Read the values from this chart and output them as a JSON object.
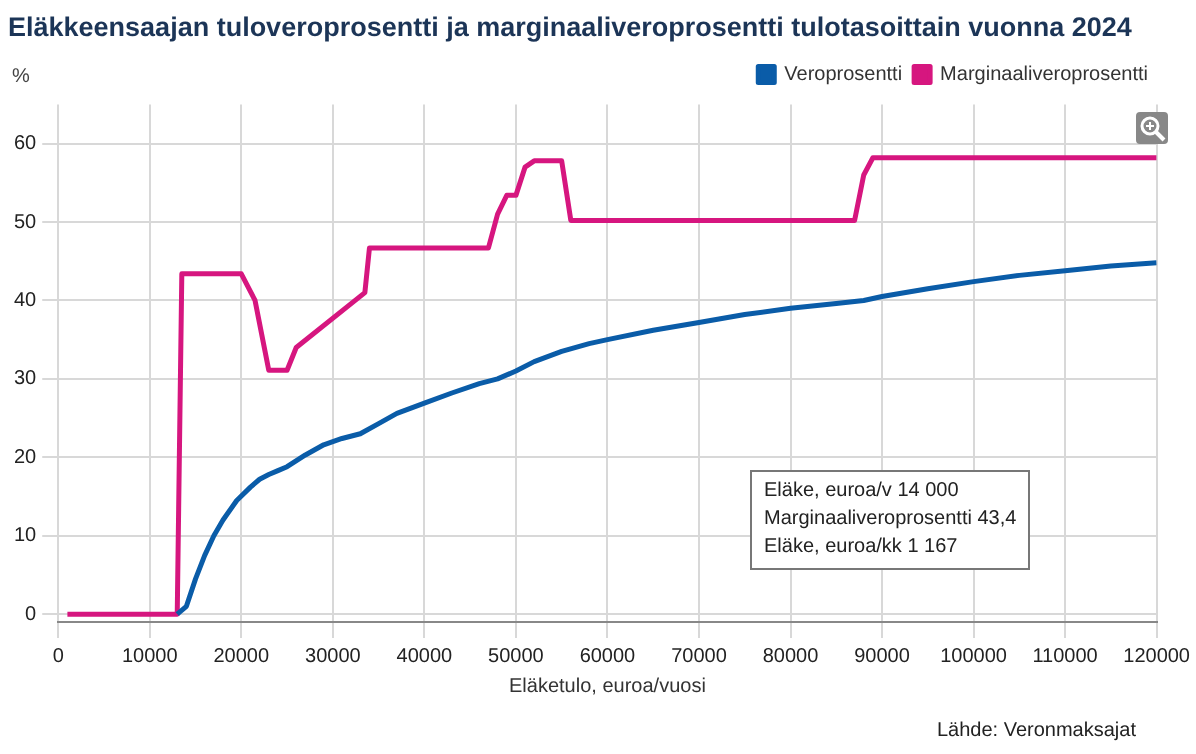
{
  "chart_data": {
    "type": "line",
    "title": "Eläkkeensaajan tuloveroprosentti ja marginaaliveroprosentti tulotasoittain vuonna 2024",
    "xlabel": "Eläketulo, euroa/vuosi",
    "ylabel": "%",
    "xlim": [
      0,
      120000
    ],
    "xticks": [
      0,
      10000,
      20000,
      30000,
      40000,
      50000,
      60000,
      70000,
      80000,
      90000,
      100000,
      110000,
      120000
    ],
    "ylim": [
      -1,
      65
    ],
    "yticks": [
      0,
      10,
      20,
      30,
      40,
      50,
      60
    ],
    "grid": true,
    "legend": "top right",
    "marker": "none",
    "line_style": "solid",
    "series": [
      {
        "name": "Veroprosentti",
        "color": "#0a5ca8",
        "x": [
          13000,
          14000,
          15000,
          16000,
          17000,
          18000,
          19500,
          21000,
          22000,
          23000,
          24000,
          25000,
          27000,
          29000,
          31000,
          33000,
          35000,
          37000,
          40000,
          43000,
          46000,
          48000,
          50000,
          52000,
          55000,
          58000,
          60000,
          65000,
          70000,
          75000,
          80000,
          85000,
          88000,
          90000,
          95000,
          100000,
          105000,
          110000,
          115000,
          120000
        ],
        "values": [
          0,
          1,
          4.5,
          7.5,
          10,
          12,
          14.5,
          16.2,
          17.2,
          17.8,
          18.3,
          18.8,
          20.3,
          21.6,
          22.4,
          23,
          24.3,
          25.6,
          26.9,
          28.2,
          29.4,
          30,
          31,
          32.2,
          33.5,
          34.5,
          35,
          36.2,
          37.2,
          38.2,
          39,
          39.6,
          40,
          40.5,
          41.5,
          42.4,
          43.2,
          43.8,
          44.4,
          44.8
        ]
      },
      {
        "name": "Marginaaliveroprosentti",
        "color": "#d6167f",
        "x": [
          1000,
          13000,
          13500,
          20000,
          21500,
          23000,
          25000,
          26000,
          33500,
          34000,
          47000,
          48000,
          49000,
          50000,
          51000,
          52000,
          55000,
          56000,
          87000,
          88000,
          89000,
          120000
        ],
        "values": [
          0,
          0,
          43.4,
          43.4,
          40,
          31.1,
          31.1,
          34,
          41,
          46.7,
          46.7,
          51,
          53.4,
          53.4,
          57,
          57.8,
          57.8,
          50.2,
          50.2,
          56,
          58.2,
          58.2
        ]
      }
    ],
    "annotations": [
      "Eläke, euroa/v 14 000",
      "Marginaaliveroprosentti 43,4",
      "Eläke, euroa/kk 1 167",
      "Lähde: Veronmaksajat"
    ]
  }
}
